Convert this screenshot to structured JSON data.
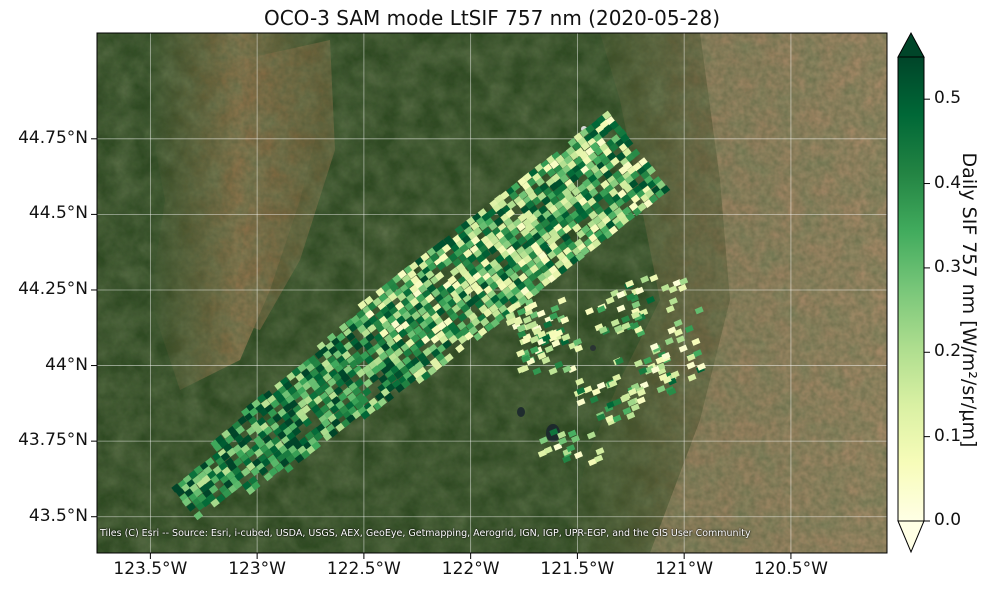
{
  "figure": {
    "title": "OCO-3 SAM mode LtSIF 757 nm (2020-05-28)",
    "attribution": "Tiles (C) Esri -- Source: Esri, i-cubed, USDA, USGS, AEX, GeoEye, Getmapping, Aerogrid, IGN, IGP, UPR-EGP, and the GIS User Community"
  },
  "colorbar": {
    "label": "Daily SIF 757 nm [W/m²/sr/μm]",
    "tick_labels": [
      "0.0",
      "0.1",
      "0.2",
      "0.3",
      "0.4",
      "0.5"
    ],
    "colormap": "YlGn",
    "colors": [
      "#ffffe5",
      "#f7fcb9",
      "#d9f0a3",
      "#addd8e",
      "#78c679",
      "#41ab5d",
      "#238443",
      "#006837",
      "#004529"
    ],
    "extend": "both"
  },
  "chart_data": {
    "type": "map",
    "basemap": "satellite imagery",
    "x_ticks": [
      -123.5,
      -123.0,
      -122.5,
      -122.0,
      -121.5,
      -121.0,
      -120.5
    ],
    "x_tick_labels": [
      "123.5°W",
      "123°W",
      "122.5°W",
      "122°W",
      "121.5°W",
      "121°W",
      "120.5°W"
    ],
    "y_ticks": [
      43.5,
      43.75,
      44.0,
      44.25,
      44.5,
      44.75
    ],
    "y_tick_labels": [
      "43.5°N",
      "43.75°N",
      "44°N",
      "44.25°N",
      "44.5°N",
      "44.75°N"
    ],
    "xlim": [
      -123.75,
      -120.05
    ],
    "ylim": [
      43.38,
      45.1
    ],
    "grid": true,
    "color_range": [
      0.0,
      0.55
    ],
    "swath": {
      "lon_start": -123.35,
      "lat_start": 43.55,
      "lon_end": -121.22,
      "lat_end": 44.72
    },
    "scatter_region": {
      "lon_range": [
        -121.85,
        -120.93
      ],
      "lat_range": [
        43.6,
        44.3
      ]
    }
  }
}
